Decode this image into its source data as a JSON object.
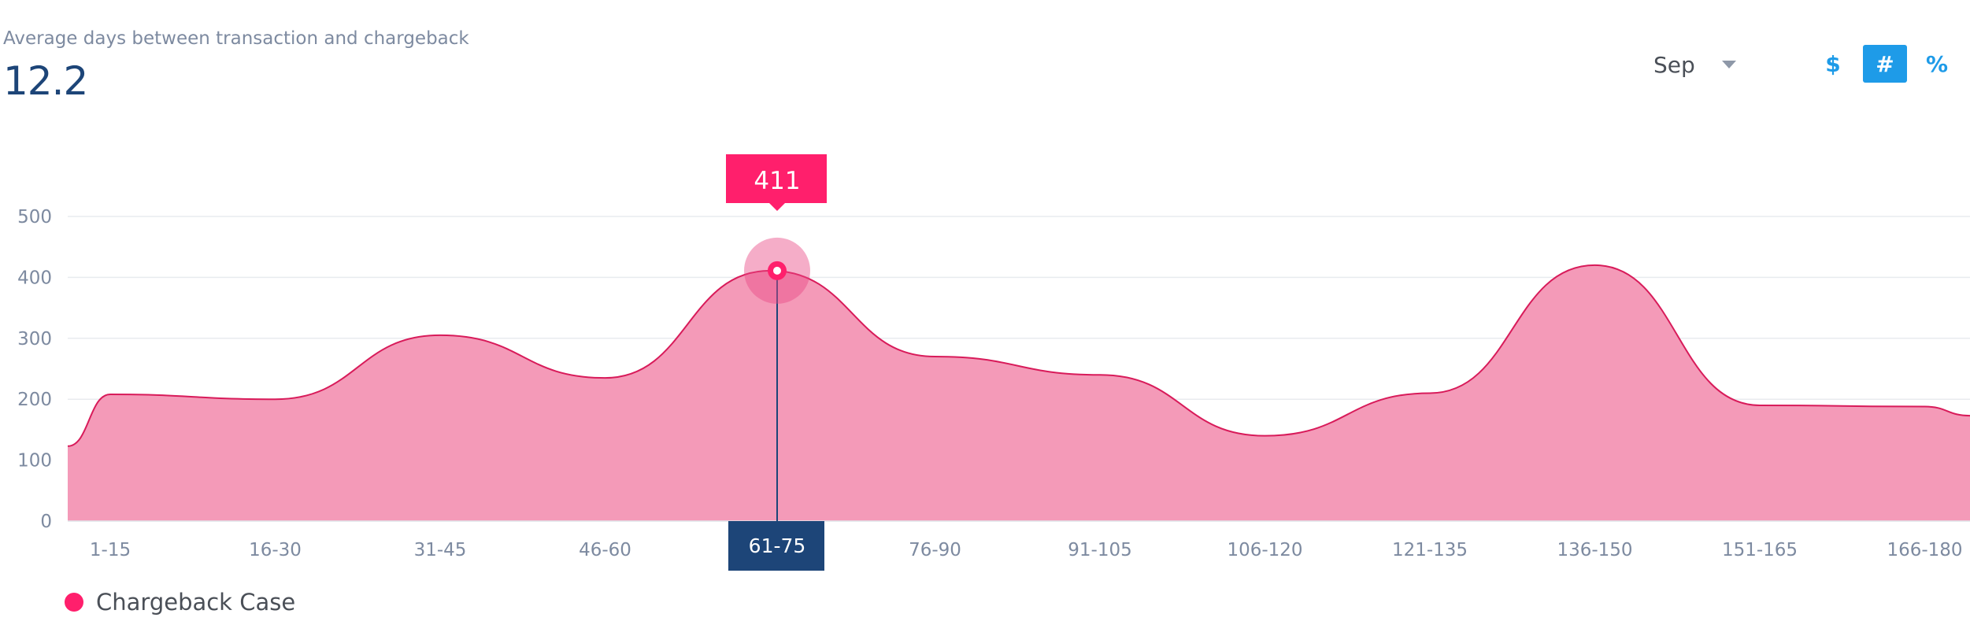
{
  "header": {
    "metric_label": "Average days between transaction and chargeback",
    "metric_value": "12.2"
  },
  "controls": {
    "month": "Sep",
    "modes": [
      {
        "label": "$",
        "active": false
      },
      {
        "label": "#",
        "active": true
      },
      {
        "label": "%",
        "active": false
      }
    ]
  },
  "legend": {
    "label": "Chargeback Case",
    "color": "#ff1f6c"
  },
  "tooltip": {
    "value": "411",
    "category": "61-75"
  },
  "chart_data": {
    "type": "area",
    "yticks": [
      0,
      100,
      200,
      300,
      400,
      500
    ],
    "ylim": [
      0,
      500
    ],
    "categories": [
      "1-15",
      "16-30",
      "31-45",
      "46-60",
      "61-75",
      "76-90",
      "91-105",
      "106-120",
      "121-135",
      "136-150",
      "151-165",
      "166-180"
    ],
    "series": [
      {
        "name": "Chargeback Case",
        "color": "#ff1f6c",
        "fill": "#f49ab8",
        "values": [
          208,
          200,
          305,
          235,
          411,
          270,
          240,
          140,
          210,
          420,
          190,
          188
        ]
      }
    ],
    "highlight_index": 4,
    "grid": true,
    "legend_position": "bottom-left"
  }
}
